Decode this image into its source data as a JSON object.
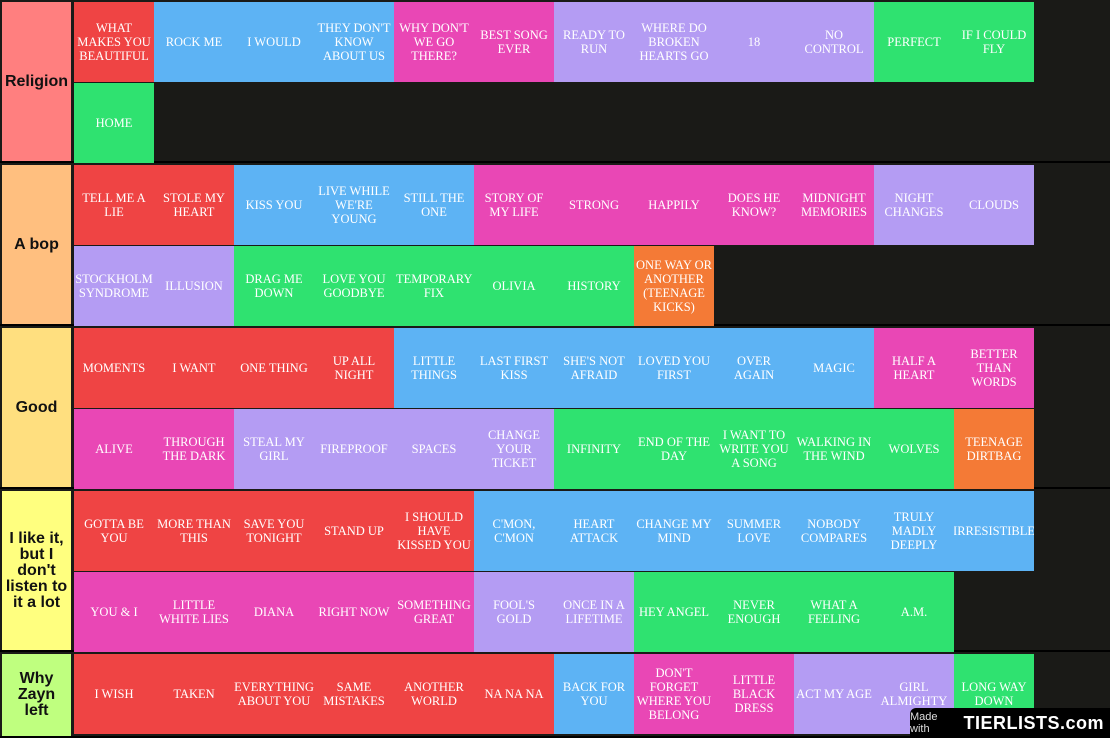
{
  "tiers": [
    {
      "label": "Religion",
      "color": "#ff7f7f",
      "items": [
        {
          "t": "WHAT MAKES YOU BEAUTIFUL",
          "c": "red"
        },
        {
          "t": "ROCK ME",
          "c": "blue"
        },
        {
          "t": "I WOULD",
          "c": "blue"
        },
        {
          "t": "THEY DON'T KNOW ABOUT US",
          "c": "blue"
        },
        {
          "t": "WHY DON'T WE GO THERE?",
          "c": "pink"
        },
        {
          "t": "BEST SONG EVER",
          "c": "pink"
        },
        {
          "t": "READY TO RUN",
          "c": "purple"
        },
        {
          "t": "WHERE DO BROKEN HEARTS GO",
          "c": "purple"
        },
        {
          "t": "18",
          "c": "purple"
        },
        {
          "t": "NO CONTROL",
          "c": "purple"
        },
        {
          "t": "PERFECT",
          "c": "green"
        },
        {
          "t": "IF I COULD FLY",
          "c": "green"
        },
        {
          "t": "HOME",
          "c": "green"
        }
      ]
    },
    {
      "label": "A bop",
      "color": "#ffbf7f",
      "items": [
        {
          "t": "TELL ME A LIE",
          "c": "red"
        },
        {
          "t": "STOLE MY HEART",
          "c": "red"
        },
        {
          "t": "KISS YOU",
          "c": "blue"
        },
        {
          "t": "LIVE WHILE WE'RE YOUNG",
          "c": "blue"
        },
        {
          "t": "STILL THE ONE",
          "c": "blue"
        },
        {
          "t": "STORY OF MY LIFE",
          "c": "pink"
        },
        {
          "t": "STRONG",
          "c": "pink"
        },
        {
          "t": "HAPPILY",
          "c": "pink"
        },
        {
          "t": "DOES HE KNOW?",
          "c": "pink"
        },
        {
          "t": "MIDNIGHT MEMORIES",
          "c": "pink"
        },
        {
          "t": "NIGHT CHANGES",
          "c": "purple"
        },
        {
          "t": "CLOUDS",
          "c": "purple"
        },
        {
          "t": "STOCKHOLM SYNDROME",
          "c": "purple"
        },
        {
          "t": "ILLUSION",
          "c": "purple"
        },
        {
          "t": "DRAG ME DOWN",
          "c": "green"
        },
        {
          "t": "LOVE YOU GOODBYE",
          "c": "green"
        },
        {
          "t": "TEMPORARY FIX",
          "c": "green"
        },
        {
          "t": "OLIVIA",
          "c": "green"
        },
        {
          "t": "HISTORY",
          "c": "green"
        },
        {
          "t": "ONE WAY OR ANOTHER (TEENAGE KICKS)",
          "c": "orange"
        }
      ]
    },
    {
      "label": "Good",
      "color": "#ffdf7f",
      "items": [
        {
          "t": "MOMENTS",
          "c": "red"
        },
        {
          "t": "I WANT",
          "c": "red"
        },
        {
          "t": "ONE THING",
          "c": "red"
        },
        {
          "t": "UP ALL NIGHT",
          "c": "red"
        },
        {
          "t": "LITTLE THINGS",
          "c": "blue"
        },
        {
          "t": "LAST FIRST KISS",
          "c": "blue"
        },
        {
          "t": "SHE'S NOT AFRAID",
          "c": "blue"
        },
        {
          "t": "LOVED YOU FIRST",
          "c": "blue"
        },
        {
          "t": "OVER AGAIN",
          "c": "blue"
        },
        {
          "t": "MAGIC",
          "c": "blue"
        },
        {
          "t": "HALF A HEART",
          "c": "pink"
        },
        {
          "t": "BETTER THAN WORDS",
          "c": "pink"
        },
        {
          "t": "ALIVE",
          "c": "pink"
        },
        {
          "t": "THROUGH THE DARK",
          "c": "pink"
        },
        {
          "t": "STEAL MY GIRL",
          "c": "purple"
        },
        {
          "t": "FIREPROOF",
          "c": "purple"
        },
        {
          "t": "SPACES",
          "c": "purple"
        },
        {
          "t": "CHANGE YOUR TICKET",
          "c": "purple"
        },
        {
          "t": "INFINITY",
          "c": "green"
        },
        {
          "t": "END OF THE DAY",
          "c": "green"
        },
        {
          "t": "I WANT TO WRITE YOU A SONG",
          "c": "green"
        },
        {
          "t": "WALKING IN THE WIND",
          "c": "green"
        },
        {
          "t": "WOLVES",
          "c": "green"
        },
        {
          "t": "TEENAGE DIRTBAG",
          "c": "orange"
        }
      ]
    },
    {
      "label": "I like it, but I don't listen to it a lot",
      "color": "#ffff7f",
      "items": [
        {
          "t": "GOTTA BE YOU",
          "c": "red"
        },
        {
          "t": "MORE THAN THIS",
          "c": "red"
        },
        {
          "t": "SAVE YOU TONIGHT",
          "c": "red"
        },
        {
          "t": "STAND UP",
          "c": "red"
        },
        {
          "t": "I SHOULD HAVE KISSED YOU",
          "c": "red"
        },
        {
          "t": "C'MON, C'MON",
          "c": "blue"
        },
        {
          "t": "HEART ATTACK",
          "c": "blue"
        },
        {
          "t": "CHANGE MY MIND",
          "c": "blue"
        },
        {
          "t": "SUMMER LOVE",
          "c": "blue"
        },
        {
          "t": "NOBODY COMPARES",
          "c": "blue"
        },
        {
          "t": "TRULY MADLY DEEPLY",
          "c": "blue"
        },
        {
          "t": "IRRESISTIBLE",
          "c": "blue"
        },
        {
          "t": "YOU & I",
          "c": "pink"
        },
        {
          "t": "LITTLE WHITE LIES",
          "c": "pink"
        },
        {
          "t": "DIANA",
          "c": "pink"
        },
        {
          "t": "RIGHT NOW",
          "c": "pink"
        },
        {
          "t": "SOMETHING GREAT",
          "c": "pink"
        },
        {
          "t": "FOOL'S GOLD",
          "c": "purple"
        },
        {
          "t": "ONCE IN A LIFETIME",
          "c": "purple"
        },
        {
          "t": "HEY ANGEL",
          "c": "green"
        },
        {
          "t": "NEVER ENOUGH",
          "c": "green"
        },
        {
          "t": "WHAT A FEELING",
          "c": "green"
        },
        {
          "t": "A.M.",
          "c": "green"
        }
      ]
    },
    {
      "label": "Why Zayn left",
      "color": "#bfff7f",
      "items": [
        {
          "t": "I WISH",
          "c": "red"
        },
        {
          "t": "TAKEN",
          "c": "red"
        },
        {
          "t": "EVERYTHING ABOUT YOU",
          "c": "red"
        },
        {
          "t": "SAME MISTAKES",
          "c": "red"
        },
        {
          "t": "ANOTHER WORLD",
          "c": "red"
        },
        {
          "t": "NA NA NA",
          "c": "red"
        },
        {
          "t": "BACK FOR YOU",
          "c": "blue"
        },
        {
          "t": "DON'T FORGET WHERE YOU BELONG",
          "c": "pink"
        },
        {
          "t": "LITTLE BLACK DRESS",
          "c": "pink"
        },
        {
          "t": "ACT MY AGE",
          "c": "purple"
        },
        {
          "t": "GIRL ALMIGHTY",
          "c": "purple"
        },
        {
          "t": "LONG WAY DOWN",
          "c": "green"
        }
      ]
    }
  ],
  "watermark": {
    "made_with": "Made with",
    "logo": "TIERLISTS.com"
  }
}
